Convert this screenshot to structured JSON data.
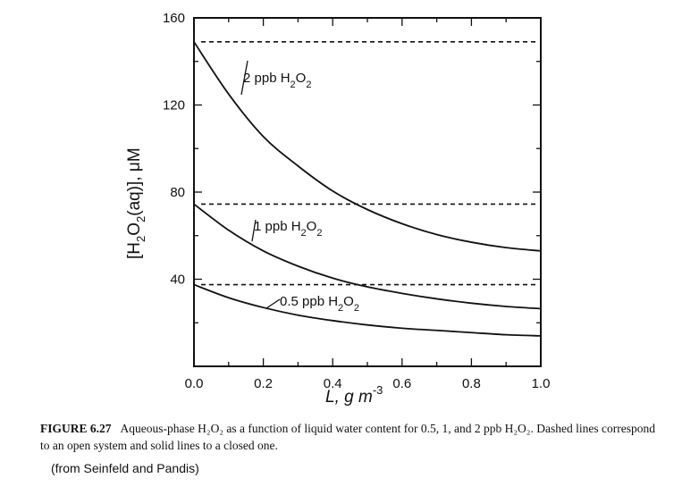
{
  "chart_data": {
    "type": "line",
    "x_ticks": [
      "0.0",
      "0.2",
      "0.4",
      "0.6",
      "0.8",
      "1.0"
    ],
    "y_ticks": [
      "40",
      "80",
      "120",
      "160"
    ],
    "xlim": [
      0,
      1.0
    ],
    "ylim": [
      0,
      160
    ],
    "xlabel": {
      "main": "L, g m",
      "sup": "-3"
    },
    "ylabel": {
      "p1": "[H",
      "s1": "2",
      "p2": "O",
      "s2": "2",
      "p3": "(aq)], μM"
    },
    "series": [
      {
        "label": {
          "text": "2 ppb H",
          "s1": "2",
          "mid": "O",
          "s2": "2"
        },
        "open_value": 149,
        "closed": [
          [
            0.0,
            149
          ],
          [
            0.1,
            125
          ],
          [
            0.2,
            105.5
          ],
          [
            0.3,
            92
          ],
          [
            0.4,
            80.5
          ],
          [
            0.5,
            72
          ],
          [
            0.6,
            65.5
          ],
          [
            0.7,
            60.5
          ],
          [
            0.8,
            57
          ],
          [
            0.9,
            54.5
          ],
          [
            1.0,
            53
          ]
        ]
      },
      {
        "label": {
          "text": "1 ppb H",
          "s1": "2",
          "mid": "O",
          "s2": "2"
        },
        "open_value": 74.5,
        "closed": [
          [
            0.0,
            74.5
          ],
          [
            0.1,
            62.5
          ],
          [
            0.2,
            53
          ],
          [
            0.3,
            46
          ],
          [
            0.4,
            40.5
          ],
          [
            0.5,
            36.5
          ],
          [
            0.6,
            33.5
          ],
          [
            0.7,
            31
          ],
          [
            0.8,
            29
          ],
          [
            0.9,
            27.5
          ],
          [
            1.0,
            26.5
          ]
        ]
      },
      {
        "label": {
          "text": "0.5 ppb H",
          "s1": "2",
          "mid": "O",
          "s2": "2"
        },
        "open_value": 37.5,
        "closed": [
          [
            0.0,
            37.5
          ],
          [
            0.1,
            31.5
          ],
          [
            0.2,
            27
          ],
          [
            0.3,
            23.5
          ],
          [
            0.4,
            21
          ],
          [
            0.5,
            19
          ],
          [
            0.6,
            17.5
          ],
          [
            0.7,
            16.5
          ],
          [
            0.8,
            15.5
          ],
          [
            0.9,
            14.5
          ],
          [
            1.0,
            14
          ]
        ]
      }
    ]
  },
  "caption": {
    "label": "FIGURE 6.27",
    "text": "Aqueous-phase H₂O₂ as a function of liquid water content for 0.5, 1, and 2 ppb H₂O₂. Dashed lines correspond to an open system and solid lines to a closed one."
  },
  "source": "(from Seinfeld and Pandis)"
}
